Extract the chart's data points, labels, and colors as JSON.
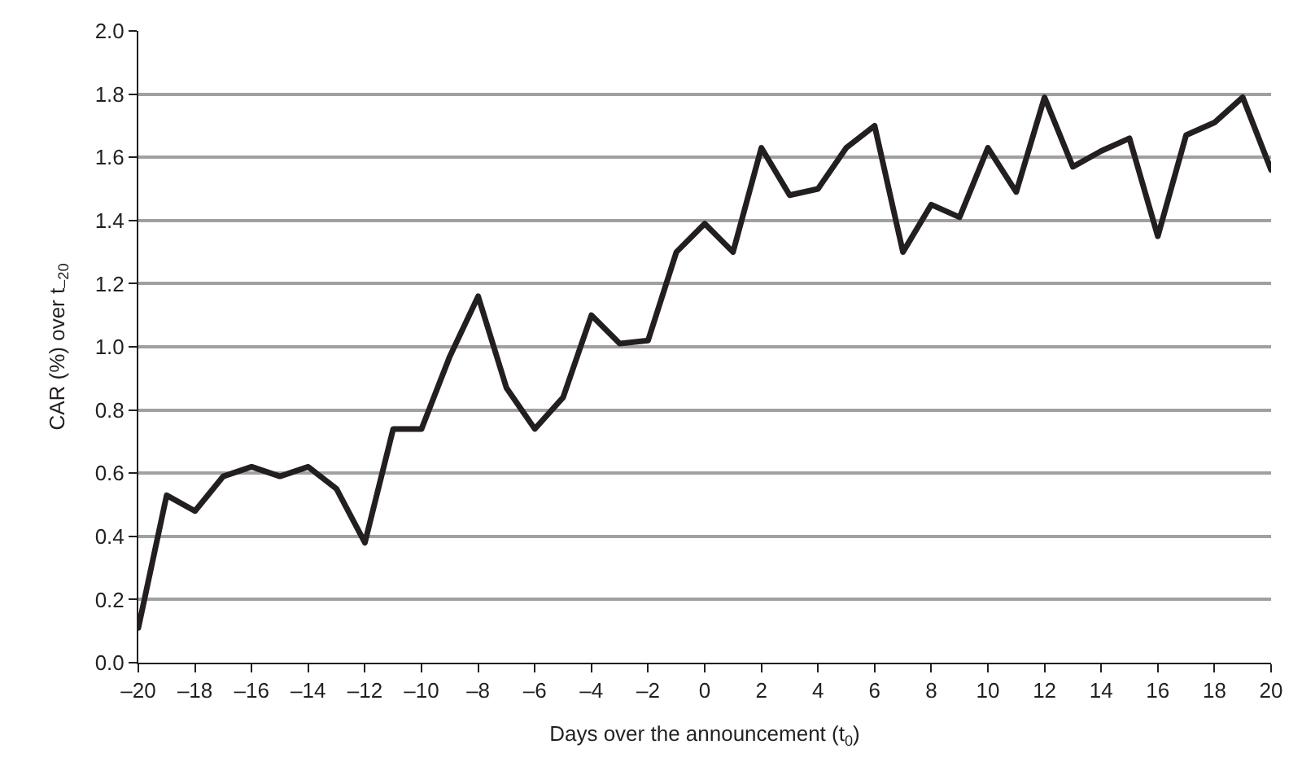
{
  "chart_data": {
    "type": "line",
    "xlabel": "Days over the announcement (t$_{0}$)",
    "ylabel": "CAR (%) over t$_{–20}$",
    "x": [
      -20,
      -19,
      -18,
      -17,
      -16,
      -15,
      -14,
      -13,
      -12,
      -11,
      -10,
      -9,
      -8,
      -7,
      -6,
      -5,
      -4,
      -3,
      -2,
      -1,
      0,
      1,
      2,
      3,
      4,
      5,
      6,
      7,
      8,
      9,
      10,
      11,
      12,
      13,
      14,
      15,
      16,
      17,
      18,
      19,
      20
    ],
    "series": [
      {
        "color": "#231f20",
        "values": [
          0.11,
          0.53,
          0.48,
          0.59,
          0.62,
          0.59,
          0.62,
          0.55,
          0.38,
          0.74,
          0.74,
          0.97,
          1.16,
          0.87,
          0.74,
          0.84,
          1.1,
          1.01,
          1.02,
          1.3,
          1.39,
          1.3,
          1.63,
          1.48,
          1.5,
          1.63,
          1.7,
          1.3,
          1.45,
          1.41,
          1.63,
          1.49,
          1.79,
          1.57,
          1.62,
          1.66,
          1.35,
          1.67,
          1.71,
          1.79,
          1.56
        ]
      }
    ],
    "xlim": [
      -20,
      20
    ],
    "xticks": [
      {
        "value": -20,
        "label": "–20"
      },
      {
        "value": -18,
        "label": "–18"
      },
      {
        "value": -16,
        "label": "–16"
      },
      {
        "value": -14,
        "label": "–14"
      },
      {
        "value": -12,
        "label": "–12"
      },
      {
        "value": -10,
        "label": "–10"
      },
      {
        "value": -8,
        "label": "–8"
      },
      {
        "value": -6,
        "label": "–6"
      },
      {
        "value": -4,
        "label": "–4"
      },
      {
        "value": -2,
        "label": "–2"
      },
      0,
      2,
      4,
      6,
      8,
      10,
      12,
      14,
      16,
      18,
      20
    ],
    "ylim": [
      0,
      2
    ],
    "yticks": [
      {
        "value": 0,
        "label": "0.0"
      },
      {
        "value": 0.2,
        "label": "0.2"
      },
      {
        "value": 0.4,
        "label": "0.4"
      },
      {
        "value": 0.6,
        "label": "0.6"
      },
      {
        "value": 0.8,
        "label": "0.8"
      },
      {
        "value": 1,
        "label": "1.0"
      },
      {
        "value": 1.2,
        "label": "1.2"
      },
      {
        "value": 1.4,
        "label": "1.4"
      },
      {
        "value": 1.6,
        "label": "1.6"
      },
      {
        "value": 1.8,
        "label": "1.8"
      },
      {
        "value": 2,
        "label": "2.0"
      }
    ],
    "grid": "y",
    "marker": "none",
    "line_style": "solid"
  }
}
